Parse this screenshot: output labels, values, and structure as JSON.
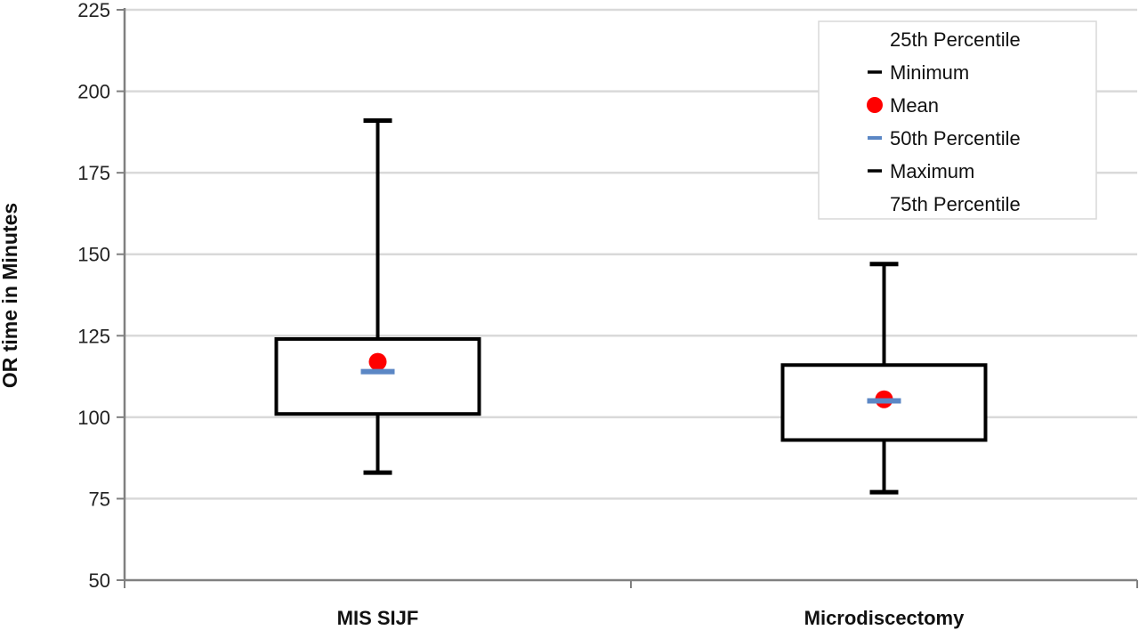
{
  "chart_data": {
    "type": "box",
    "ylabel": "OR time in Minutes",
    "xlabel": "",
    "ylim": [
      50,
      225
    ],
    "yticks": [
      50,
      75,
      100,
      125,
      150,
      175,
      200,
      225
    ],
    "grid": "horizontal",
    "categories": [
      "MIS SIJF",
      "Microdiscectomy"
    ],
    "series": [
      {
        "name": "25th Percentile",
        "values": [
          101,
          93
        ]
      },
      {
        "name": "Minimum",
        "values": [
          83,
          77
        ]
      },
      {
        "name": "Mean",
        "values": [
          117,
          105.5
        ]
      },
      {
        "name": "50th Percentile",
        "values": [
          114,
          105
        ]
      },
      {
        "name": "Maximum",
        "values": [
          191,
          147
        ]
      },
      {
        "name": "75th Percentile",
        "values": [
          124,
          116
        ]
      }
    ],
    "legend": {
      "placement": "top-right",
      "items": [
        {
          "label": "25th Percentile",
          "marker": "none"
        },
        {
          "label": "Minimum",
          "marker": "black-dash"
        },
        {
          "label": "Mean",
          "marker": "red-dot"
        },
        {
          "label": "50th Percentile",
          "marker": "blue-dash"
        },
        {
          "label": "Maximum",
          "marker": "black-dash"
        },
        {
          "label": "75th Percentile",
          "marker": "none"
        }
      ]
    },
    "colors": {
      "mean": "#ff0000",
      "median": "#5b87c5",
      "box": "#000000",
      "grid": "#d9d9d9",
      "axis": "#808080"
    }
  }
}
